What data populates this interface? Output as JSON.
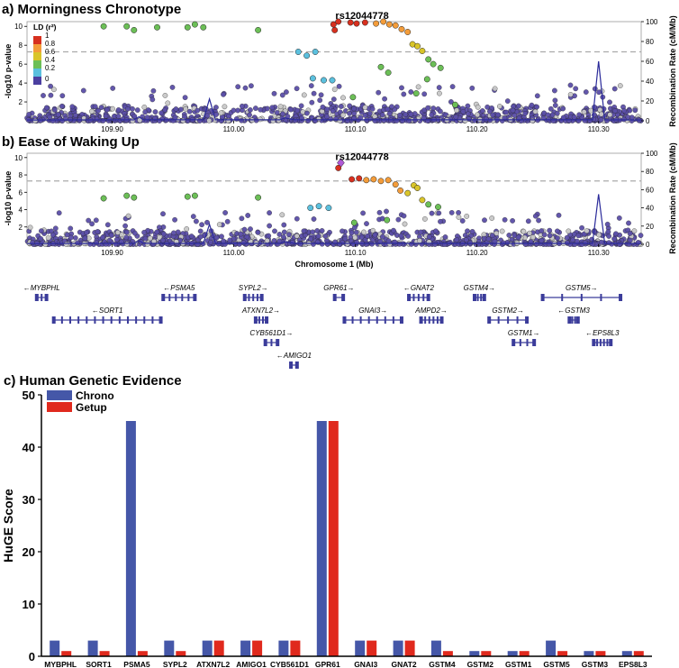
{
  "panels": {
    "a_title": "a) Morningness Chronotype",
    "b_title": "b) Ease of Waking Up",
    "c_title": "c) Human Genetic Evidence"
  },
  "locus": {
    "lead_snp": "rs12044778",
    "y_label": "-log10 p-value",
    "rec_label": "Recombination Rate (cM/Mb)",
    "x_label": "Chromosome 1 (Mb)",
    "x_range": [
      109.83,
      110.335
    ],
    "y_range": [
      0,
      10.5
    ],
    "rec_range": [
      0,
      100
    ],
    "x_ticks": [
      "109.90",
      "110.00",
      "110.10",
      "110.20",
      "110.30"
    ],
    "x_tick_values": [
      109.9,
      110.0,
      110.1,
      110.2,
      110.3
    ],
    "y_ticks": [
      "2",
      "4",
      "6",
      "8",
      "10"
    ],
    "rec_ticks": [
      "0",
      "20",
      "40",
      "60",
      "80",
      "100"
    ],
    "significance_line": 7.3,
    "lead_pos": 110.088,
    "ld_title": "LD (r²)",
    "ld_ticks": [
      "1",
      "0.8",
      "0.6",
      "0.4",
      "0.2",
      "0"
    ],
    "ld_colors": [
      "#d7301f",
      "#f39c3a",
      "#d9c52a",
      "#6cbf57",
      "#5bc0de",
      "#4b3fa0"
    ]
  },
  "genes": [
    {
      "name": "←MYBPHL",
      "row": 0,
      "start": 109.838,
      "end": 109.846,
      "exons": 3
    },
    {
      "name": "←SORT1",
      "row": 1,
      "start": 109.852,
      "end": 109.94,
      "exons": 14
    },
    {
      "name": "←PSMA5",
      "row": 0,
      "start": 109.942,
      "end": 109.968,
      "exons": 6
    },
    {
      "name": "SYPL2→",
      "row": 0,
      "start": 110.009,
      "end": 110.023,
      "exons": 5
    },
    {
      "name": "ATXN7L2→",
      "row": 1,
      "start": 110.018,
      "end": 110.027,
      "exons": 4
    },
    {
      "name": "CYB561D1→",
      "row": 2,
      "start": 110.026,
      "end": 110.036,
      "exons": 3
    },
    {
      "name": "←AMIGO1",
      "row": 3,
      "start": 110.047,
      "end": 110.052,
      "exons": 2
    },
    {
      "name": "GPR61→",
      "row": 0,
      "start": 110.083,
      "end": 110.09,
      "exons": 2
    },
    {
      "name": "GNAI3→",
      "row": 1,
      "start": 110.091,
      "end": 110.138,
      "exons": 8
    },
    {
      "name": "←GNAT2",
      "row": 0,
      "start": 110.144,
      "end": 110.16,
      "exons": 5
    },
    {
      "name": "AMPD2→",
      "row": 1,
      "start": 110.154,
      "end": 110.171,
      "exons": 6
    },
    {
      "name": "GSTM4→",
      "row": 0,
      "start": 110.198,
      "end": 110.206,
      "exons": 4
    },
    {
      "name": "GSTM2→",
      "row": 1,
      "start": 110.21,
      "end": 110.241,
      "exons": 5
    },
    {
      "name": "GSTM1→",
      "row": 2,
      "start": 110.23,
      "end": 110.247,
      "exons": 4
    },
    {
      "name": "GSTM5→",
      "row": 0,
      "start": 110.254,
      "end": 110.318,
      "exons": 5
    },
    {
      "name": "←GSTM3",
      "row": 1,
      "start": 110.276,
      "end": 110.283,
      "exons": 4
    },
    {
      "name": "←EPS8L3",
      "row": 2,
      "start": 110.296,
      "end": 110.31,
      "exons": 6
    }
  ],
  "chart_data": [
    {
      "type": "scatter",
      "title": "a) Morningness Chronotype",
      "xlabel": "",
      "ylabel": "-log10 p-value",
      "y2label": "Recombination Rate (cM/Mb)",
      "xlim": [
        109.83,
        110.335
      ],
      "ylim": [
        0,
        10.5
      ],
      "annotation": "rs12044778",
      "points": [
        {
          "x": 109.893,
          "y": 10.0,
          "ld": 0.3
        },
        {
          "x": 109.912,
          "y": 10.0,
          "ld": 0.3
        },
        {
          "x": 109.918,
          "y": 9.6,
          "ld": 0.3
        },
        {
          "x": 109.937,
          "y": 9.9,
          "ld": 0.3
        },
        {
          "x": 109.962,
          "y": 9.9,
          "ld": 0.3
        },
        {
          "x": 109.968,
          "y": 10.2,
          "ld": 0.3
        },
        {
          "x": 109.975,
          "y": 9.9,
          "ld": 0.3
        },
        {
          "x": 110.02,
          "y": 9.6,
          "ld": 0.3
        },
        {
          "x": 110.053,
          "y": 7.3,
          "ld": 0.1
        },
        {
          "x": 110.06,
          "y": 6.9,
          "ld": 0.1
        },
        {
          "x": 110.067,
          "y": 7.3,
          "ld": 0.1
        },
        {
          "x": 110.065,
          "y": 4.5,
          "ld": 0.1
        },
        {
          "x": 110.074,
          "y": 4.3,
          "ld": 0.1
        },
        {
          "x": 110.081,
          "y": 4.3,
          "ld": 0.1
        },
        {
          "x": 110.082,
          "y": 10.2,
          "ld": 0.9
        },
        {
          "x": 110.086,
          "y": 10.5,
          "ld": 0.95
        },
        {
          "x": 110.083,
          "y": 9.6,
          "ld": 0.9
        },
        {
          "x": 110.096,
          "y": 10.4,
          "ld": 0.85
        },
        {
          "x": 110.101,
          "y": 10.3,
          "ld": 0.8
        },
        {
          "x": 110.108,
          "y": 10.4,
          "ld": 0.8
        },
        {
          "x": 110.117,
          "y": 10.3,
          "ld": 0.7
        },
        {
          "x": 110.123,
          "y": 10.5,
          "ld": 0.7
        },
        {
          "x": 110.128,
          "y": 10.2,
          "ld": 0.7
        },
        {
          "x": 110.133,
          "y": 10.1,
          "ld": 0.65
        },
        {
          "x": 110.138,
          "y": 9.7,
          "ld": 0.6
        },
        {
          "x": 110.143,
          "y": 9.4,
          "ld": 0.6
        },
        {
          "x": 110.147,
          "y": 8.1,
          "ld": 0.45
        },
        {
          "x": 110.151,
          "y": 7.9,
          "ld": 0.45
        },
        {
          "x": 110.155,
          "y": 7.4,
          "ld": 0.4
        },
        {
          "x": 110.16,
          "y": 6.5,
          "ld": 0.3
        },
        {
          "x": 110.164,
          "y": 6.0,
          "ld": 0.3
        },
        {
          "x": 110.17,
          "y": 5.6,
          "ld": 0.3
        },
        {
          "x": 110.121,
          "y": 5.7,
          "ld": 0.3
        },
        {
          "x": 110.127,
          "y": 5.1,
          "ld": 0.3
        },
        {
          "x": 110.159,
          "y": 4.4,
          "ld": 0.3
        },
        {
          "x": 110.15,
          "y": 2.9,
          "ld": 0.3
        },
        {
          "x": 110.098,
          "y": 2.5,
          "ld": 0.3
        },
        {
          "x": 110.182,
          "y": 1.7,
          "ld": 0.3
        }
      ],
      "recombination": [
        [
          109.83,
          0.8
        ],
        [
          109.918,
          1.0
        ],
        [
          109.922,
          4.0
        ],
        [
          109.926,
          1.0
        ],
        [
          109.975,
          1.0
        ],
        [
          109.98,
          22.0
        ],
        [
          109.985,
          1.0
        ],
        [
          110.038,
          1.0
        ],
        [
          110.042,
          3.0
        ],
        [
          110.05,
          1.0
        ],
        [
          110.295,
          1.0
        ],
        [
          110.3,
          60.0
        ],
        [
          110.305,
          1.0
        ],
        [
          110.335,
          0.8
        ]
      ],
      "background_count": 1000
    },
    {
      "type": "scatter",
      "title": "b) Ease of Waking Up",
      "xlabel": "Chromosome 1 (Mb)",
      "ylabel": "-log10 p-value",
      "y2label": "Recombination Rate (cM/Mb)",
      "xlim": [
        109.83,
        110.335
      ],
      "ylim": [
        0,
        10.5
      ],
      "annotation": "rs12044778",
      "points": [
        {
          "x": 109.893,
          "y": 5.3,
          "ld": 0.3
        },
        {
          "x": 109.912,
          "y": 5.6,
          "ld": 0.3
        },
        {
          "x": 109.918,
          "y": 5.4,
          "ld": 0.3
        },
        {
          "x": 109.962,
          "y": 5.5,
          "ld": 0.3
        },
        {
          "x": 109.968,
          "y": 5.6,
          "ld": 0.3
        },
        {
          "x": 110.02,
          "y": 5.4,
          "ld": 0.3
        },
        {
          "x": 110.088,
          "y": 9.4,
          "ld": 1.0
        },
        {
          "x": 110.086,
          "y": 8.8,
          "ld": 0.9
        },
        {
          "x": 110.097,
          "y": 7.5,
          "ld": 0.85
        },
        {
          "x": 110.103,
          "y": 7.6,
          "ld": 0.8
        },
        {
          "x": 110.109,
          "y": 7.4,
          "ld": 0.75
        },
        {
          "x": 110.115,
          "y": 7.5,
          "ld": 0.7
        },
        {
          "x": 110.121,
          "y": 7.3,
          "ld": 0.7
        },
        {
          "x": 110.127,
          "y": 7.4,
          "ld": 0.65
        },
        {
          "x": 110.133,
          "y": 6.9,
          "ld": 0.6
        },
        {
          "x": 110.137,
          "y": 6.2,
          "ld": 0.6
        },
        {
          "x": 110.143,
          "y": 5.9,
          "ld": 0.55
        },
        {
          "x": 110.148,
          "y": 6.8,
          "ld": 0.4
        },
        {
          "x": 110.151,
          "y": 6.5,
          "ld": 0.4
        },
        {
          "x": 110.155,
          "y": 5.1,
          "ld": 0.4
        },
        {
          "x": 110.16,
          "y": 4.6,
          "ld": 0.3
        },
        {
          "x": 110.168,
          "y": 4.3,
          "ld": 0.3
        },
        {
          "x": 110.063,
          "y": 4.2,
          "ld": 0.1
        },
        {
          "x": 110.07,
          "y": 4.4,
          "ld": 0.1
        },
        {
          "x": 110.078,
          "y": 4.2,
          "ld": 0.1
        },
        {
          "x": 110.126,
          "y": 2.8,
          "ld": 0.3
        },
        {
          "x": 110.099,
          "y": 2.5,
          "ld": 0.3
        }
      ],
      "recombination": [
        [
          109.83,
          0.8
        ],
        [
          109.918,
          1.0
        ],
        [
          109.922,
          4.0
        ],
        [
          109.926,
          1.0
        ],
        [
          109.975,
          1.0
        ],
        [
          109.98,
          22.0
        ],
        [
          109.985,
          1.0
        ],
        [
          110.038,
          1.0
        ],
        [
          110.042,
          3.0
        ],
        [
          110.05,
          1.0
        ],
        [
          110.295,
          1.0
        ],
        [
          110.3,
          55.0
        ],
        [
          110.305,
          1.0
        ],
        [
          110.335,
          0.8
        ]
      ],
      "background_count": 1000
    },
    {
      "type": "bar",
      "title": "c) Human Genetic Evidence",
      "xlabel": "",
      "ylabel": "HuGE Score",
      "ylim": [
        0,
        50
      ],
      "yticks": [
        0,
        10,
        20,
        30,
        40,
        50
      ],
      "categories": [
        "MYBPHL",
        "SORT1",
        "PSMA5",
        "SYPL2",
        "ATXN7L2",
        "AMIGO1",
        "CYB561D1",
        "GPR61",
        "GNAI3",
        "GNAT2",
        "GSTM4",
        "GSTM2",
        "GSTM1",
        "GSTM5",
        "GSTM3",
        "EPS8L3"
      ],
      "series": [
        {
          "name": "Chrono",
          "color": "#4557a8",
          "values": [
            3,
            3,
            45,
            3,
            3,
            3,
            3,
            45,
            3,
            3,
            3,
            1,
            1,
            3,
            1,
            1
          ]
        },
        {
          "name": "Getup",
          "color": "#e0291d",
          "values": [
            1,
            1,
            1,
            1,
            3,
            3,
            3,
            45,
            3,
            3,
            1,
            1,
            1,
            1,
            1,
            1
          ]
        }
      ],
      "legend": "top-left"
    }
  ]
}
